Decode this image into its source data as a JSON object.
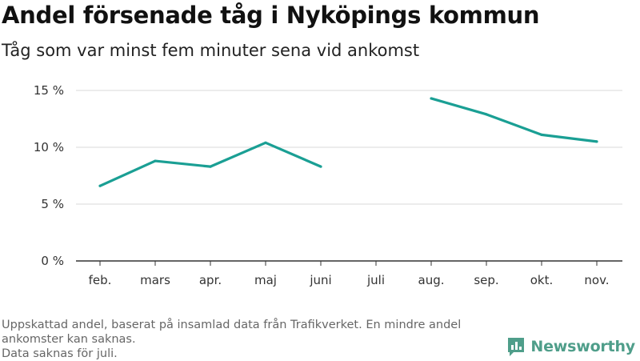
{
  "title": "Andel försenade tåg i Nyköpings kommun",
  "subtitle": "Tåg som var minst fem minuter sena vid ankomst",
  "footnote": {
    "line1": "Uppskattad andel, baserat på insamlad data från Trafikverket. En mindre andel ankomster kan saknas.",
    "line2": "Data saknas för juli."
  },
  "logo": {
    "name": "Newsworthy",
    "icon": "bar-chart-icon",
    "color": "#4f9e8a"
  },
  "chart_data": {
    "type": "line",
    "title": "Andel försenade tåg i Nyköpings kommun",
    "subtitle": "Tåg som var minst fem minuter sena vid ankomst",
    "xlabel": "",
    "ylabel": "",
    "categories": [
      "feb.",
      "mars",
      "apr.",
      "maj",
      "juni",
      "juli",
      "aug.",
      "sep.",
      "okt.",
      "nov."
    ],
    "series": [
      {
        "values": [
          6.6,
          8.8,
          8.3,
          10.4,
          8.3,
          null,
          14.3,
          12.9,
          11.1,
          10.5
        ],
        "color": "#1a9f94"
      }
    ],
    "ylim": [
      0,
      15
    ],
    "yticks": [
      0,
      5,
      10,
      15
    ],
    "ytick_labels": [
      "0 %",
      "5 %",
      "10 %",
      "15 %"
    ],
    "grid": true,
    "legend": "none"
  }
}
